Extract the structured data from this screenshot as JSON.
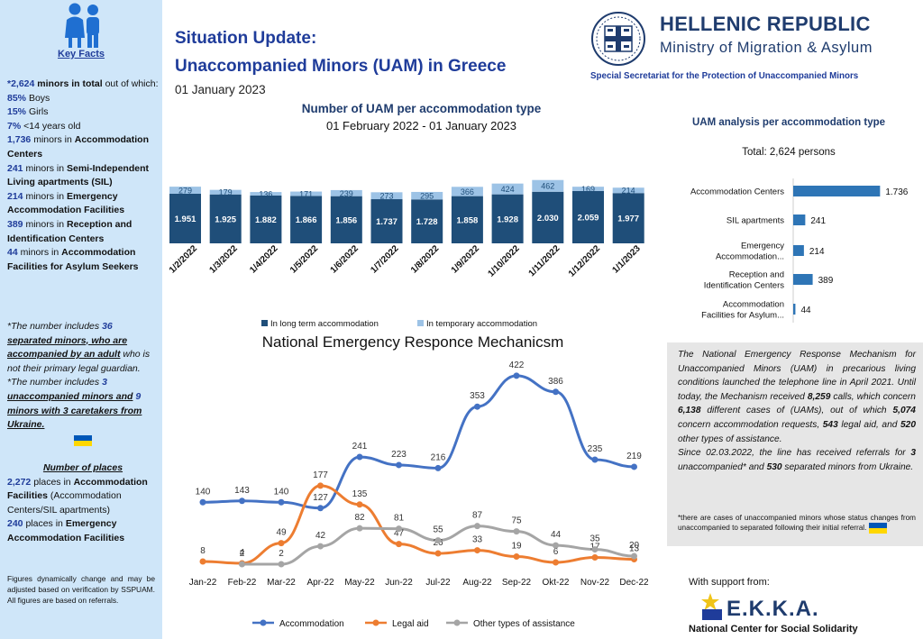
{
  "sidebar": {
    "heading": "Key Facts",
    "total_value": "*2,624",
    "total_label": "minors in total",
    "total_tail": "out of which:",
    "boys_value": "85%",
    "boys_label": "Boys",
    "girls_value": "15%",
    "girls_label": "Girls",
    "under14_value": "7%",
    "under14_label": "<14 years old",
    "ac_value": "1,736",
    "ac_pre": "minors in",
    "ac_label": "Accommodation Centers",
    "sil_value": "241",
    "sil_pre": "minors in",
    "sil_label": "Semi-Independent Living apartments (SIL)",
    "eaf_value": "214",
    "eaf_pre": "minors in",
    "eaf_label": "Emergency Accommodation Facilities",
    "ric_value": "389",
    "ric_pre": "minors in",
    "ric_label": "Reception and Identification Centers",
    "afas_value": "44",
    "afas_pre": "minors in",
    "afas_label": "Accommodation Facilities for Asylum Seekers",
    "note1_a": "*The number includes",
    "note1_value": "36",
    "note1_b": "separated minors, who are accompanied by an adult",
    "note1_c": "who is not their primary legal guardian.",
    "note2_a": "*The number includes",
    "note2_value1": "3",
    "note2_b": "unaccompanied minors and",
    "note2_value2": "9",
    "note2_c": "minors with 3 caretakers from Ukraine.",
    "places_heading": "Number of places",
    "places1_value": "2,272",
    "places1_pre": "places in",
    "places1_label": "Accommodation Facilities",
    "places1_tail": "(Accommodation Centers/SIL apartments)",
    "places2_value": "240",
    "places2_pre": "places in",
    "places2_label": "Emergency Accommodation Facilities",
    "footnote": "Figures dynamically change and may be adjusted based on verification by SSPUAM. All figures are based on referrals."
  },
  "header": {
    "title_line1": "Situation Update:",
    "title_line2": "Unaccompanied Minors (UAM) in Greece",
    "date": "01 January 2023",
    "org_name": "HELLENIC REPUBLIC",
    "ministry": "Ministry of Migration & Asylum",
    "secretariat": "Special Secretariat for the Protection of Unaccompanied Minors"
  },
  "info_box": {
    "p1_a": "The National Emergency Response Mechanism for Unaccompanied Minors (UAM) in precarious living conditions launched the telephone line in April 2021. Until today, the Mechanism received",
    "calls": "8,259",
    "p1_b": "calls, which concern",
    "cases": "6,138",
    "p1_c": "different cases of (UAMs), out of which",
    "accom": "5,074",
    "p1_d": "concern accommodation requests,",
    "legal": "543",
    "p1_e": "legal aid, and",
    "other": "520",
    "p1_f": "other types of assistance.",
    "p2_a": "Since 02.03.2022, the line has received referrals for",
    "ref_unacc": "3",
    "p2_b": "unaccompanied* and",
    "ref_sep": "530",
    "p2_c": "separated minors from Ukraine.",
    "note": "*there are cases of unaccompanied minors whose status changes from unaccompanied to separated following their initial referral."
  },
  "support": {
    "label": "With support from:",
    "logo_text": "E.K.K.A.",
    "org_name": "National Center for Social Solidarity"
  },
  "colors": {
    "dark_blue": "#1f4e79",
    "light_blue": "#9dc3e6",
    "hbar_blue": "#2e75b6",
    "line_blue": "#4472c4",
    "line_orange": "#ed7d31",
    "line_grey": "#a5a5a5",
    "ua_blue": "#0057b7",
    "ua_yellow": "#ffd700"
  },
  "chart_data": [
    {
      "type": "bar",
      "stacked": true,
      "title": "Number of UAM per accommodation type",
      "subtitle": "01 February 2022 - 01 January 2023",
      "categories": [
        "1/2/2022",
        "1/3/2022",
        "1/4/2022",
        "1/5/2022",
        "1/6/2022",
        "1/7/2022",
        "1/8/2022",
        "1/9/2022",
        "1/10/2022",
        "1/11/2022",
        "1/12/2022",
        "1/1/2023"
      ],
      "series": [
        {
          "name": "In long term accommodation",
          "values": [
            1951,
            1925,
            1882,
            1866,
            1856,
            1737,
            1728,
            1858,
            1928,
            2030,
            2059,
            1977
          ],
          "labels": [
            "1.951",
            "1.925",
            "1.882",
            "1.866",
            "1.856",
            "1.737",
            "1.728",
            "1.858",
            "1.928",
            "2.030",
            "2.059",
            "1.977"
          ]
        },
        {
          "name": "In temporary accommodation",
          "values": [
            279,
            179,
            136,
            171,
            239,
            273,
            295,
            366,
            424,
            462,
            169,
            214
          ],
          "labels": [
            "279",
            "179",
            "136",
            "171",
            "239",
            "273",
            "295",
            "366",
            "424",
            "462",
            "169",
            "214"
          ]
        }
      ],
      "legend_position": "bottom"
    },
    {
      "type": "bar",
      "orientation": "horizontal",
      "title": "UAM analysis per accommodation type",
      "subtitle": "Total: 2,624 persons",
      "categories": [
        [
          "Accommodation Centers"
        ],
        [
          "SIL apartments"
        ],
        [
          "Emergency",
          "Accommodation..."
        ],
        [
          "Reception and",
          "Identification Centers"
        ],
        [
          "Accommodation",
          "Facilities for Asylum..."
        ]
      ],
      "values": [
        1736,
        241,
        214,
        389,
        44
      ],
      "labels": [
        "1.736",
        "241",
        "214",
        "389",
        "44"
      ]
    },
    {
      "type": "line",
      "title": "National Emergency Responce Mechanicsm",
      "categories": [
        "Jan-22",
        "Feb-22",
        "Mar-22",
        "Apr-22",
        "May-22",
        "Jun-22",
        "Jul-22",
        "Aug-22",
        "Sep-22",
        "Okt-22",
        "Nov-22",
        "Dec-22"
      ],
      "series": [
        {
          "name": "Accommodation",
          "values": [
            140,
            143,
            140,
            127,
            241,
            223,
            216,
            353,
            422,
            386,
            235,
            219
          ]
        },
        {
          "name": "Legal aid",
          "values": [
            8,
            4,
            49,
            177,
            135,
            47,
            26,
            33,
            19,
            6,
            17,
            13
          ]
        },
        {
          "name": "Other types of assistance",
          "values": [
            null,
            2,
            2,
            42,
            82,
            81,
            55,
            87,
            75,
            44,
            35,
            20
          ]
        }
      ],
      "ylim": [
        0,
        450
      ],
      "legend_position": "bottom"
    }
  ]
}
